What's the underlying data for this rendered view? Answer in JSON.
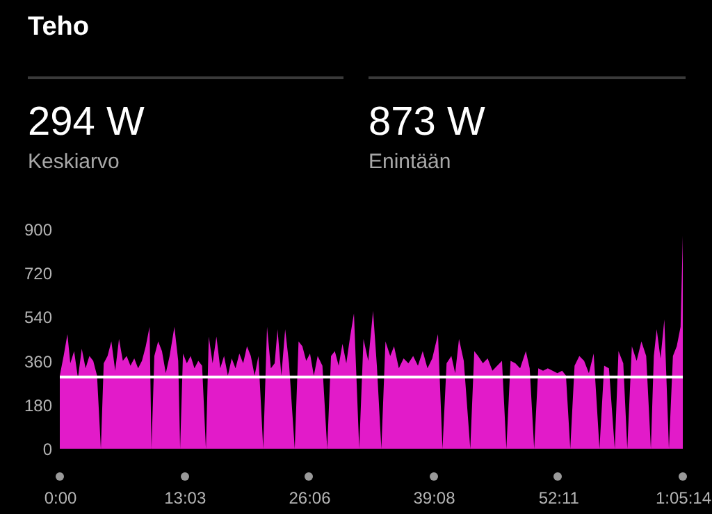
{
  "chart_data": {
    "type": "area",
    "title": "Teho",
    "annotations": [
      "294 W",
      "Keskiarvo",
      "873 W",
      "Enintään"
    ],
    "x": [
      0,
      0.4,
      0.8,
      1.1,
      1.5,
      1.9,
      2.3,
      2.7,
      3.1,
      3.5,
      3.9,
      4.3,
      4.6,
      5.0,
      5.4,
      5.8,
      6.2,
      6.6,
      7.0,
      7.4,
      7.8,
      8.2,
      8.6,
      9.0,
      9.4,
      9.6,
      9.9,
      10.3,
      10.7,
      11.1,
      11.5,
      12.0,
      12.4,
      12.6,
      12.9,
      13.3,
      13.7,
      14.1,
      14.5,
      14.9,
      15.3,
      15.6,
      16.0,
      16.4,
      16.8,
      17.2,
      17.6,
      18.0,
      18.4,
      18.8,
      19.2,
      19.6,
      20.0,
      20.4,
      20.8,
      21.3,
      21.7,
      22.1,
      22.5,
      22.8,
      23.2,
      23.6,
      24.0,
      24.6,
      25.0,
      25.4,
      25.8,
      26.2,
      26.6,
      27.0,
      27.5,
      28.0,
      28.4,
      28.8,
      29.2,
      29.6,
      30.0,
      30.4,
      30.8,
      31.35,
      31.8,
      32.3,
      32.8,
      33.2,
      33.67,
      34.1,
      34.6,
      35.0,
      35.5,
      36.0,
      36.5,
      37.0,
      37.5,
      38.0,
      38.5,
      39.0,
      39.6,
      40.07,
      40.5,
      41.0,
      41.4,
      41.8,
      42.3,
      42.98,
      43.4,
      43.8,
      44.3,
      44.8,
      45.3,
      45.8,
      46.3,
      46.76,
      47.2,
      47.7,
      48.2,
      48.8,
      49.2,
      49.67,
      50.1,
      50.6,
      51.1,
      51.6,
      52.1,
      52.6,
      53.0,
      53.45,
      53.9,
      54.4,
      54.9,
      55.4,
      55.9,
      56.51,
      57.0,
      57.5,
      58.11,
      58.5,
      59.0,
      59.42,
      59.9,
      60.4,
      60.9,
      61.4,
      61.89,
      62.2,
      62.5,
      62.9,
      63.3,
      63.78,
      64.2,
      64.6,
      65.0,
      65.233
    ],
    "series": [
      {
        "color": "#e21bc9",
        "values": [
          300,
          380,
          470,
          350,
          400,
          290,
          410,
          330,
          380,
          360,
          300,
          0,
          350,
          380,
          440,
          320,
          450,
          360,
          380,
          340,
          370,
          330,
          360,
          420,
          500,
          0,
          380,
          440,
          400,
          310,
          380,
          500,
          360,
          0,
          390,
          350,
          380,
          330,
          360,
          340,
          0,
          460,
          350,
          460,
          330,
          380,
          300,
          370,
          330,
          390,
          350,
          420,
          380,
          300,
          380,
          0,
          500,
          330,
          350,
          490,
          300,
          490,
          350,
          0,
          440,
          420,
          360,
          390,
          300,
          380,
          340,
          0,
          380,
          400,
          340,
          430,
          350,
          460,
          555,
          0,
          450,
          360,
          565,
          340,
          0,
          440,
          380,
          420,
          330,
          370,
          350,
          380,
          340,
          400,
          330,
          370,
          470,
          0,
          350,
          380,
          310,
          450,
          360,
          0,
          400,
          380,
          350,
          370,
          320,
          340,
          360,
          0,
          360,
          350,
          330,
          400,
          330,
          0,
          330,
          320,
          330,
          320,
          310,
          320,
          300,
          0,
          340,
          380,
          360,
          310,
          390,
          0,
          340,
          330,
          0,
          400,
          350,
          0,
          420,
          360,
          440,
          380,
          0,
          380,
          490,
          370,
          530,
          0,
          380,
          420,
          500,
          873
        ]
      }
    ],
    "xlim": [
      0,
      65.233
    ],
    "xticks": [
      {
        "value": 0,
        "label": "0:00"
      },
      {
        "value": 13.05,
        "label": "13:03"
      },
      {
        "value": 26.1,
        "label": "26:06"
      },
      {
        "value": 39.133,
        "label": "39:08"
      },
      {
        "value": 52.183,
        "label": "52:11"
      },
      {
        "value": 65.233,
        "label": "1:05:14"
      }
    ],
    "ylim": [
      0,
      900
    ],
    "yticks": [
      0,
      180,
      360,
      540,
      720,
      900
    ],
    "ref_lines": [
      {
        "axis": "y",
        "value": 294,
        "color": "#ffffff"
      }
    ]
  }
}
